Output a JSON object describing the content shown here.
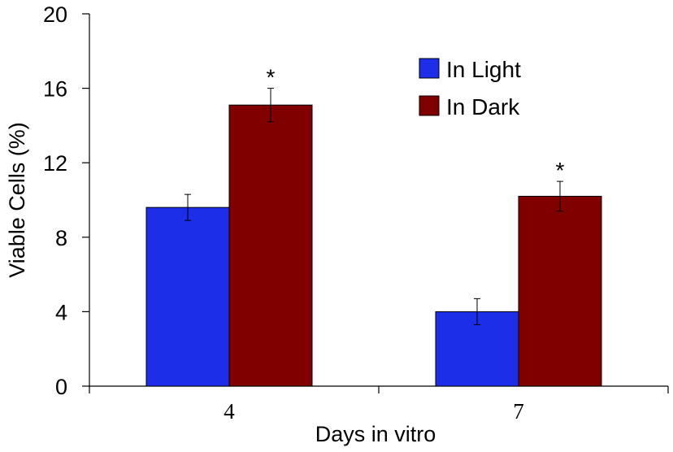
{
  "chart_data": {
    "type": "bar",
    "xlabel": "Days in vitro",
    "ylabel": "Viable Cells (%)",
    "ylim": [
      0,
      20
    ],
    "yticks": [
      0,
      4,
      8,
      12,
      16,
      20
    ],
    "categories": [
      "4",
      "7"
    ],
    "series": [
      {
        "name": "In Light",
        "color": "#1c2ee8",
        "values": [
          9.6,
          4.0
        ],
        "errors": [
          0.7,
          0.7
        ]
      },
      {
        "name": "In Dark",
        "color": "#800000",
        "values": [
          15.1,
          10.2
        ],
        "errors": [
          0.9,
          0.8
        ]
      }
    ],
    "annotations": [
      {
        "category": "4",
        "series": "In Dark",
        "text": "*"
      },
      {
        "category": "7",
        "series": "In Dark",
        "text": "*"
      }
    ],
    "legend_position": "top-right",
    "grid": false
  }
}
